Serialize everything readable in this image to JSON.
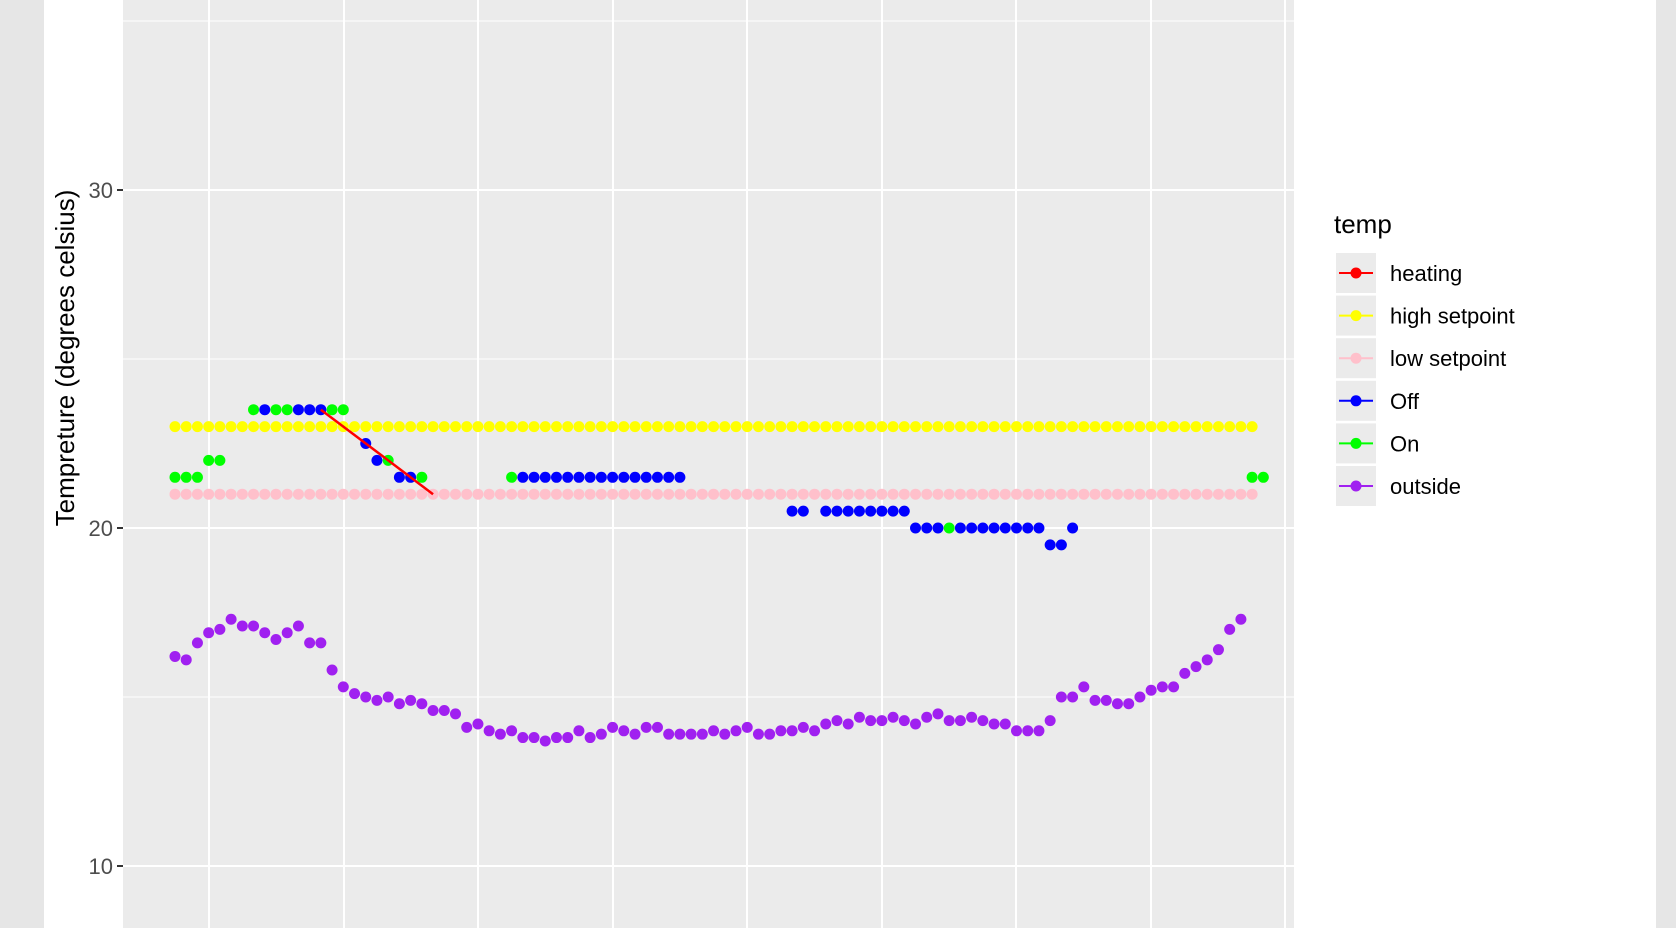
{
  "chart_data": {
    "type": "scatter",
    "title": "",
    "xlabel": "",
    "ylabel": "Tempreture (degrees celsius)",
    "ylim": [
      10,
      36
    ],
    "yticks": [
      10,
      20,
      30
    ],
    "xlim": [
      -2,
      102
    ],
    "grid": true,
    "legend": {
      "title": "temp",
      "placement": "right",
      "entries": [
        "heating",
        "high setpoint",
        "low setpoint",
        "Off",
        "On",
        "outside"
      ]
    },
    "colors": {
      "heating": "#ff0000",
      "high setpoint": "#ffff00",
      "low setpoint": "#ffc0cb",
      "Off": "#0000ff",
      "On": "#00ff00",
      "outside": "#a020f0"
    },
    "series": [
      {
        "name": "high setpoint",
        "mode": "points",
        "x_start": 3,
        "x_step": 1,
        "count": 97,
        "y_const": 23
      },
      {
        "name": "low setpoint",
        "mode": "points",
        "x_start": 3,
        "x_step": 1,
        "count": 97,
        "y_const": 21
      },
      {
        "name": "outside",
        "mode": "points",
        "x_start": 3,
        "x_step": 1,
        "values": [
          16.2,
          16.1,
          16.6,
          16.9,
          17.0,
          17.3,
          17.1,
          17.1,
          16.9,
          16.7,
          16.9,
          17.1,
          16.6,
          16.6,
          15.8,
          15.3,
          15.1,
          15.0,
          14.9,
          15.0,
          14.8,
          14.9,
          14.8,
          14.6,
          14.6,
          14.5,
          14.1,
          14.2,
          14.0,
          13.9,
          14.0,
          13.8,
          13.8,
          13.7,
          13.8,
          13.8,
          14.0,
          13.8,
          13.9,
          14.1,
          14.0,
          13.9,
          14.1,
          14.1,
          13.9,
          13.9,
          13.9,
          13.9,
          14.0,
          13.9,
          14.0,
          14.1,
          13.9,
          13.9,
          14.0,
          14.0,
          14.1,
          14.0,
          14.2,
          14.3,
          14.2,
          14.4,
          14.3,
          14.3,
          14.4,
          14.3,
          14.2,
          14.4,
          14.5,
          14.3,
          14.3,
          14.4,
          14.3,
          14.2,
          14.2,
          14.0,
          14.0,
          14.0,
          14.3,
          15.0,
          15.0,
          15.3,
          14.9,
          14.9,
          14.8,
          14.8,
          15.0,
          15.2,
          15.3,
          15.3,
          15.7,
          15.9,
          16.1,
          16.4,
          17.0,
          17.3
        ]
      },
      {
        "name": "On",
        "mode": "points",
        "points": [
          [
            3,
            21.5
          ],
          [
            4,
            21.5
          ],
          [
            5,
            21.5
          ],
          [
            6,
            22
          ],
          [
            7,
            22
          ],
          [
            10,
            23.5
          ],
          [
            12,
            23.5
          ],
          [
            13,
            23.5
          ],
          [
            17,
            23.5
          ],
          [
            18,
            23.5
          ],
          [
            22,
            22
          ],
          [
            25,
            21.5
          ],
          [
            33,
            21.5
          ],
          [
            72,
            20
          ],
          [
            99,
            21.5
          ],
          [
            100,
            21.5
          ]
        ]
      },
      {
        "name": "Off",
        "mode": "points",
        "points": [
          [
            11,
            23.5
          ],
          [
            14,
            23.5
          ],
          [
            15,
            23.5
          ],
          [
            16,
            23.5
          ],
          [
            20,
            22.5
          ],
          [
            21,
            22
          ],
          [
            23,
            21.5
          ],
          [
            24,
            21.5
          ],
          [
            34,
            21.5
          ],
          [
            35,
            21.5
          ],
          [
            36,
            21.5
          ],
          [
            37,
            21.5
          ],
          [
            38,
            21.5
          ],
          [
            39,
            21.5
          ],
          [
            40,
            21.5
          ],
          [
            41,
            21.5
          ],
          [
            42,
            21.5
          ],
          [
            43,
            21.5
          ],
          [
            44,
            21.5
          ],
          [
            45,
            21.5
          ],
          [
            46,
            21.5
          ],
          [
            47,
            21.5
          ],
          [
            48,
            21.5
          ],
          [
            58,
            20.5
          ],
          [
            59,
            20.5
          ],
          [
            61,
            20.5
          ],
          [
            62,
            20.5
          ],
          [
            63,
            20.5
          ],
          [
            64,
            20.5
          ],
          [
            65,
            20.5
          ],
          [
            66,
            20.5
          ],
          [
            67,
            20.5
          ],
          [
            68,
            20.5
          ],
          [
            69,
            20
          ],
          [
            70,
            20
          ],
          [
            71,
            20
          ],
          [
            73,
            20
          ],
          [
            74,
            20
          ],
          [
            75,
            20
          ],
          [
            76,
            20
          ],
          [
            77,
            20
          ],
          [
            78,
            20
          ],
          [
            79,
            20
          ],
          [
            80,
            20
          ],
          [
            81,
            19.5
          ],
          [
            82,
            19.5
          ],
          [
            83,
            20
          ]
        ]
      },
      {
        "name": "heating",
        "mode": "line",
        "points": [
          [
            16,
            23.5
          ],
          [
            26,
            21
          ]
        ]
      }
    ]
  }
}
